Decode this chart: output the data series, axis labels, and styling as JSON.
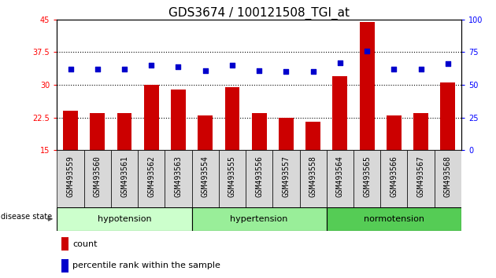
{
  "title": "GDS3674 / 100121508_TGI_at",
  "samples": [
    "GSM493559",
    "GSM493560",
    "GSM493561",
    "GSM493562",
    "GSM493563",
    "GSM493554",
    "GSM493555",
    "GSM493556",
    "GSM493557",
    "GSM493558",
    "GSM493564",
    "GSM493565",
    "GSM493566",
    "GSM493567",
    "GSM493568"
  ],
  "counts": [
    24.0,
    23.5,
    23.5,
    30.0,
    29.0,
    23.0,
    29.5,
    23.5,
    22.5,
    21.5,
    32.0,
    44.5,
    23.0,
    23.5,
    30.5
  ],
  "percentiles": [
    62,
    62,
    62,
    65,
    64,
    61,
    65,
    61,
    60,
    60,
    67,
    76,
    62,
    62,
    66
  ],
  "groups": [
    {
      "name": "hypotension",
      "start": 0,
      "end": 5
    },
    {
      "name": "hypertension",
      "start": 5,
      "end": 10
    },
    {
      "name": "normotension",
      "start": 10,
      "end": 15
    }
  ],
  "group_colors": [
    "#ccffcc",
    "#99ee99",
    "#55cc55"
  ],
  "ylim_left": [
    15,
    45
  ],
  "ylim_right": [
    0,
    100
  ],
  "yticks_left": [
    15,
    22.5,
    30,
    37.5,
    45
  ],
  "yticks_right": [
    0,
    25,
    50,
    75,
    100
  ],
  "bar_color": "#cc0000",
  "dot_color": "#0000cc",
  "title_fontsize": 11,
  "tick_fontsize": 7,
  "disease_state_label": "disease state"
}
